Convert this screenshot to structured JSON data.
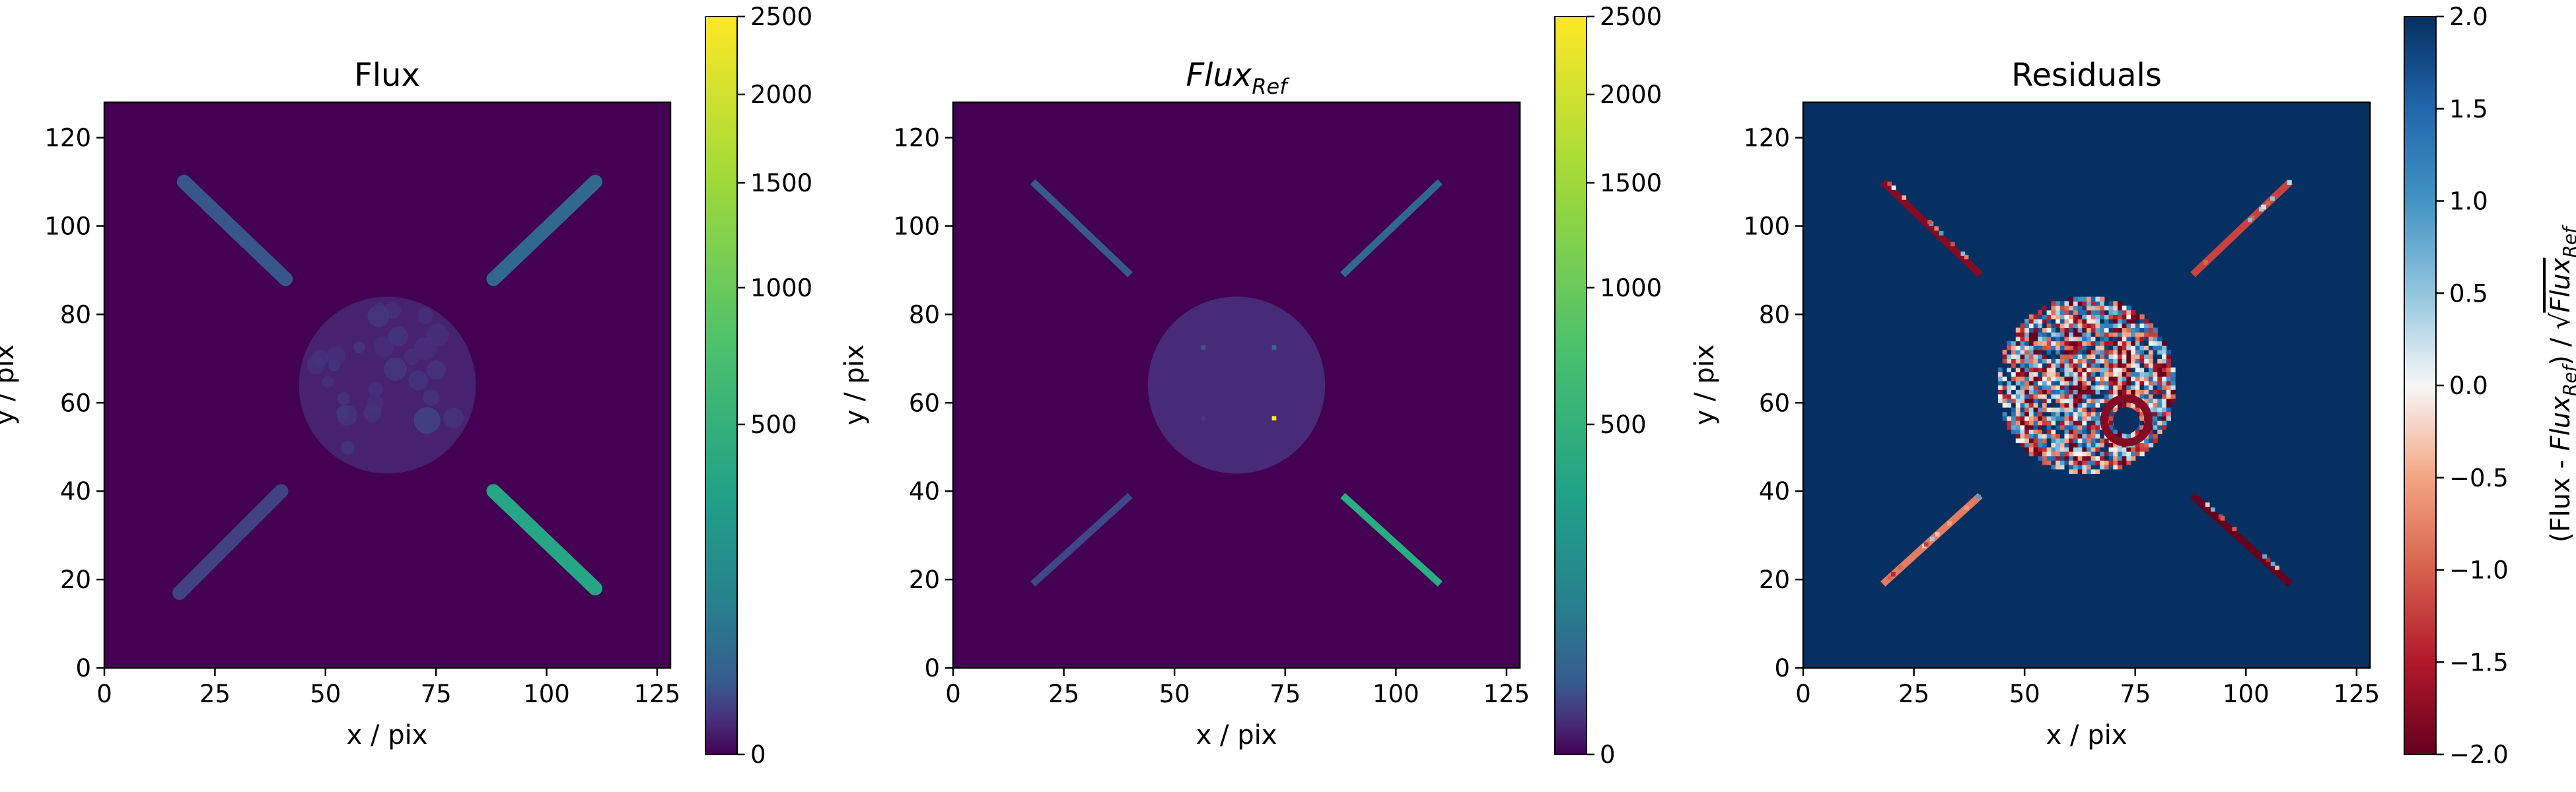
{
  "chart_data": [
    {
      "type": "heatmap",
      "title": "Flux",
      "xlabel": "x / pix",
      "ylabel": "y / pix",
      "xlim": [
        0,
        128
      ],
      "ylim": [
        0,
        128
      ],
      "xticks": [
        "0",
        "25",
        "50",
        "75",
        "100",
        "125"
      ],
      "yticks": [
        "0",
        "20",
        "40",
        "60",
        "80",
        "100",
        "120"
      ],
      "colormap": "viridis",
      "colorbar": {
        "scale": "power",
        "range": [
          0,
          2500
        ],
        "ticks": [
          "0",
          "500",
          "1000",
          "1500",
          "2000",
          "2500"
        ]
      },
      "background_value": 0,
      "features": [
        {
          "kind": "line",
          "from": [
            18,
            110
          ],
          "to": [
            41,
            88
          ],
          "value": 180
        },
        {
          "kind": "line",
          "from": [
            88,
            88
          ],
          "to": [
            111,
            110
          ],
          "value": 300
        },
        {
          "kind": "line",
          "from": [
            17,
            17
          ],
          "to": [
            40,
            40
          ],
          "value": 100
        },
        {
          "kind": "line",
          "from": [
            88,
            40
          ],
          "to": [
            111,
            18
          ],
          "value": 900
        },
        {
          "kind": "disk",
          "center": [
            64,
            64
          ],
          "radius": 20,
          "value": 25
        },
        {
          "kind": "spot",
          "center": [
            73,
            56
          ],
          "radius": 3,
          "value": 90
        }
      ]
    },
    {
      "type": "heatmap",
      "title": "Flux_Ref",
      "xlabel": "x / pix",
      "ylabel": "y / pix",
      "xlim": [
        0,
        128
      ],
      "ylim": [
        0,
        128
      ],
      "xticks": [
        "0",
        "25",
        "50",
        "75",
        "100",
        "125"
      ],
      "yticks": [
        "0",
        "20",
        "40",
        "60",
        "80",
        "100",
        "120"
      ],
      "colormap": "viridis",
      "colorbar": {
        "scale": "power",
        "range": [
          0,
          2500
        ],
        "ticks": [
          "0",
          "500",
          "1000",
          "1500",
          "2000",
          "2500"
        ]
      },
      "background_value": 0,
      "features": [
        {
          "kind": "line",
          "from": [
            18,
            110
          ],
          "to": [
            40,
            89
          ],
          "value": 200
        },
        {
          "kind": "line",
          "from": [
            88,
            89
          ],
          "to": [
            110,
            110
          ],
          "value": 300
        },
        {
          "kind": "line",
          "from": [
            18,
            19
          ],
          "to": [
            40,
            39
          ],
          "value": 120
        },
        {
          "kind": "line",
          "from": [
            88,
            39
          ],
          "to": [
            110,
            19
          ],
          "value": 1000
        },
        {
          "kind": "disk",
          "center": [
            64,
            64
          ],
          "radius": 20,
          "value": 40
        },
        {
          "kind": "point",
          "center": [
            56,
            72
          ],
          "value": 200
        },
        {
          "kind": "point",
          "center": [
            72,
            72
          ],
          "value": 300
        },
        {
          "kind": "point",
          "center": [
            56,
            56
          ],
          "value": 80
        },
        {
          "kind": "point",
          "center": [
            72,
            56
          ],
          "value": 2500
        }
      ]
    },
    {
      "type": "heatmap",
      "title": "Residuals",
      "xlabel": "x / pix",
      "ylabel": "y / pix",
      "xlim": [
        0,
        128
      ],
      "ylim": [
        0,
        128
      ],
      "xticks": [
        "0",
        "25",
        "50",
        "75",
        "100",
        "125"
      ],
      "yticks": [
        "0",
        "20",
        "40",
        "60",
        "80",
        "100",
        "120"
      ],
      "colormap": "RdBu",
      "colorbar": {
        "scale": "linear",
        "range": [
          -2.0,
          2.0
        ],
        "ticks": [
          "2.0",
          "1.5",
          "1.0",
          "0.5",
          "0.0",
          "−0.5",
          "−1.0",
          "−1.5",
          "−2.0"
        ],
        "label": "(Flux - Flux_Ref) / √Flux_Ref"
      },
      "background_value": 2.0,
      "features": [
        {
          "kind": "line",
          "from": [
            18,
            110
          ],
          "to": [
            40,
            89
          ],
          "value": -1.8
        },
        {
          "kind": "line",
          "from": [
            88,
            89
          ],
          "to": [
            110,
            110
          ],
          "value": -1.2
        },
        {
          "kind": "line",
          "from": [
            18,
            19
          ],
          "to": [
            40,
            39
          ],
          "value": -0.8
        },
        {
          "kind": "line",
          "from": [
            88,
            39
          ],
          "to": [
            110,
            19
          ],
          "value": -2.0
        },
        {
          "kind": "disk",
          "center": [
            64,
            64
          ],
          "radius": 20,
          "value": "noisy -2.0 to 2.0"
        },
        {
          "kind": "ring",
          "center": [
            73,
            56
          ],
          "radius": 5,
          "value": -1.8
        }
      ]
    }
  ]
}
